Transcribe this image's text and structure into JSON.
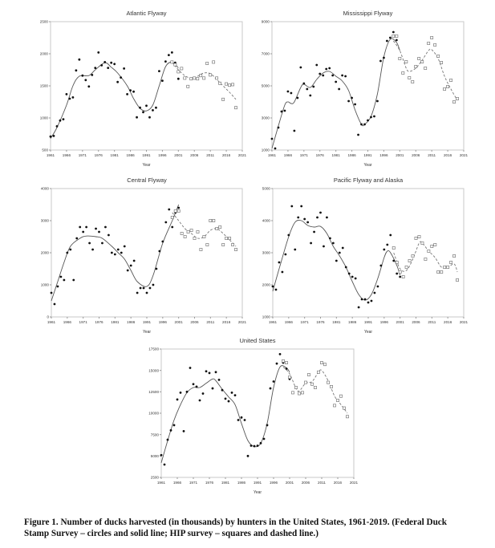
{
  "caption": "Figure 1. Number of ducks harvested (in thousands) by hunters in the United States, 1961-2019.  (Federal Duck Stamp Survey – circles and solid line; HIP survey – squares and dashed line.)",
  "chart_data": [
    {
      "type": "scatter",
      "title": "Atlantic Flyway",
      "xlabel": "Year",
      "xlim": [
        1961,
        2021
      ],
      "xticks": [
        1961,
        1966,
        1971,
        1976,
        1981,
        1986,
        1991,
        1996,
        2001,
        2006,
        2011,
        2016,
        2021
      ],
      "ylim": [
        500,
        2500
      ],
      "yticks": [
        500,
        1000,
        1500,
        2000,
        2500
      ],
      "circles": {
        "x": [
          1961,
          1962,
          1963,
          1964,
          1965,
          1966,
          1967,
          1968,
          1969,
          1970,
          1971,
          1972,
          1973,
          1974,
          1975,
          1976,
          1977,
          1978,
          1979,
          1980,
          1981,
          1982,
          1983,
          1984,
          1985,
          1986,
          1987,
          1988,
          1989,
          1990,
          1991,
          1992,
          1993,
          1994,
          1995,
          1996,
          1997,
          1998,
          1999,
          2000,
          2001
        ],
        "y": [
          710,
          720,
          870,
          960,
          980,
          1370,
          1300,
          1320,
          1740,
          1910,
          1660,
          1590,
          1490,
          1670,
          1780,
          2020,
          1820,
          1870,
          1780,
          1860,
          1840,
          1560,
          1630,
          1770,
          1370,
          1430,
          1410,
          1010,
          1160,
          1090,
          1190,
          1010,
          1120,
          1160,
          1730,
          1580,
          1880,
          1980,
          2020,
          1860,
          1610
        ]
      },
      "squares": {
        "x": [
          1999,
          2000,
          2001,
          2002,
          2003,
          2004,
          2005,
          2006,
          2007,
          2008,
          2009,
          2010,
          2011,
          2012,
          2013,
          2014,
          2015,
          2016,
          2017,
          2018,
          2019
        ],
        "y": [
          1870,
          1830,
          1720,
          1770,
          1620,
          1490,
          1610,
          1620,
          1610,
          1660,
          1620,
          1850,
          1670,
          1870,
          1620,
          1540,
          1290,
          1530,
          1510,
          1520,
          1160
        ]
      },
      "solid_line": {
        "x": [
          1961,
          1963,
          1966,
          1968,
          1970,
          1973,
          1975,
          1978,
          1980,
          1982,
          1985,
          1987,
          1989,
          1991,
          1993,
          1995,
          1997,
          1999,
          2001
        ],
        "y": [
          680,
          850,
          1200,
          1500,
          1650,
          1660,
          1750,
          1860,
          1790,
          1700,
          1500,
          1300,
          1150,
          1110,
          1200,
          1500,
          1800,
          1870,
          1780
        ]
      },
      "dashed_line": {
        "x": [
          1999,
          2001,
          2003,
          2005,
          2007,
          2009,
          2011,
          2013,
          2015,
          2017,
          2019
        ],
        "y": [
          1870,
          1750,
          1660,
          1620,
          1650,
          1700,
          1690,
          1600,
          1500,
          1400,
          1290
        ]
      }
    },
    {
      "type": "scatter",
      "title": "Mississippi Flyway",
      "xlabel": "Year",
      "xlim": [
        1961,
        2021
      ],
      "xticks": [
        1961,
        1966,
        1971,
        1976,
        1981,
        1986,
        1991,
        1996,
        2001,
        2006,
        2011,
        2016,
        2021
      ],
      "ylim": [
        1000,
        9000
      ],
      "yticks": [
        1000,
        3000,
        5000,
        7000,
        9000
      ],
      "circles": {
        "x": [
          1961,
          1962,
          1963,
          1964,
          1965,
          1966,
          1967,
          1968,
          1969,
          1970,
          1971,
          1972,
          1973,
          1974,
          1975,
          1976,
          1977,
          1978,
          1979,
          1980,
          1981,
          1982,
          1983,
          1984,
          1985,
          1986,
          1987,
          1988,
          1989,
          1990,
          1991,
          1992,
          1993,
          1994,
          1995,
          1996,
          1997,
          1998,
          1999,
          2000,
          2001
        ],
        "y": [
          1700,
          1100,
          2400,
          3400,
          3450,
          4650,
          4550,
          2200,
          4250,
          6150,
          5150,
          4800,
          4400,
          4950,
          6300,
          5750,
          5650,
          6050,
          6100,
          5650,
          5250,
          4800,
          5650,
          5600,
          4050,
          4250,
          3850,
          1950,
          2600,
          2600,
          2850,
          3050,
          3100,
          4050,
          6550,
          6750,
          7800,
          8000,
          8350,
          7850,
          6700
        ]
      },
      "squares": {
        "x": [
          1999,
          2000,
          2001,
          2002,
          2003,
          2004,
          2005,
          2006,
          2007,
          2008,
          2009,
          2010,
          2011,
          2012,
          2013,
          2014,
          2015,
          2016,
          2017,
          2018,
          2019
        ],
        "y": [
          8100,
          8100,
          6700,
          5800,
          6500,
          5500,
          5250,
          6200,
          6700,
          6500,
          6100,
          7650,
          8000,
          7550,
          6850,
          6450,
          4800,
          4950,
          5350,
          4000,
          4200
        ]
      },
      "solid_line": {
        "x": [
          1961,
          1963,
          1965,
          1966,
          1967,
          1968,
          1970,
          1971,
          1973,
          1975,
          1977,
          1979,
          1981,
          1983,
          1985,
          1987,
          1989,
          1990,
          1992,
          1994,
          1996,
          1998,
          2000,
          2001
        ],
        "y": [
          1100,
          2500,
          3800,
          4000,
          3900,
          4000,
          4900,
          5100,
          4900,
          5400,
          5800,
          5900,
          5600,
          5300,
          4700,
          3500,
          2600,
          2600,
          3100,
          4500,
          6800,
          7900,
          7700,
          7200
        ]
      },
      "dashed_line": {
        "x": [
          1999,
          2001,
          2003,
          2004,
          2006,
          2008,
          2010,
          2011,
          2013,
          2015,
          2017,
          2019
        ],
        "y": [
          7800,
          7200,
          6100,
          5900,
          6100,
          6600,
          7200,
          7250,
          6700,
          5600,
          4800,
          4100
        ]
      }
    },
    {
      "type": "scatter",
      "title": "Central Flyway",
      "xlabel": "Year",
      "xlim": [
        1961,
        2021
      ],
      "xticks": [
        1961,
        1966,
        1971,
        1976,
        1981,
        1986,
        1991,
        1996,
        2001,
        2006,
        2011,
        2016,
        2021
      ],
      "ylim": [
        0,
        4000
      ],
      "yticks": [
        0,
        1000,
        2000,
        3000,
        4000
      ],
      "circles": {
        "x": [
          1961,
          1962,
          1963,
          1964,
          1965,
          1966,
          1967,
          1968,
          1969,
          1970,
          1971,
          1972,
          1973,
          1974,
          1975,
          1976,
          1977,
          1978,
          1979,
          1980,
          1981,
          1982,
          1983,
          1984,
          1985,
          1986,
          1987,
          1988,
          1989,
          1990,
          1991,
          1992,
          1993,
          1994,
          1995,
          1996,
          1997,
          1998,
          1999,
          2000,
          2001
        ],
        "y": [
          750,
          400,
          950,
          1250,
          1150,
          2000,
          2100,
          1150,
          2450,
          2800,
          2650,
          2800,
          2300,
          2100,
          2750,
          2650,
          2300,
          2800,
          2550,
          2000,
          1950,
          2100,
          2000,
          2200,
          1450,
          1600,
          1750,
          750,
          900,
          900,
          750,
          900,
          1000,
          1500,
          2050,
          2350,
          2950,
          3350,
          2800,
          3250,
          3400
        ]
      },
      "squares": {
        "x": [
          1999,
          2000,
          2001,
          2002,
          2003,
          2004,
          2005,
          2006,
          2007,
          2008,
          2009,
          2010,
          2011,
          2012,
          2013,
          2014,
          2015,
          2016,
          2017,
          2018,
          2019
        ],
        "y": [
          3100,
          3300,
          3300,
          2600,
          2500,
          2650,
          2700,
          2450,
          2650,
          2100,
          2500,
          2250,
          3000,
          3000,
          2750,
          2800,
          2250,
          2450,
          2450,
          2250,
          2100
        ]
      },
      "solid_line": {
        "x": [
          1961,
          1963,
          1965,
          1967,
          1970,
          1972,
          1975,
          1977,
          1980,
          1982,
          1984,
          1986,
          1988,
          1991,
          1993,
          1996,
          1999,
          2001
        ],
        "y": [
          500,
          1100,
          1700,
          2200,
          2450,
          2520,
          2500,
          2450,
          2200,
          2000,
          1800,
          1450,
          1100,
          950,
          1300,
          2300,
          3000,
          3500
        ]
      },
      "dashed_line": {
        "x": [
          1999,
          2001,
          2003,
          2005,
          2007,
          2009,
          2011,
          2013,
          2015,
          2017,
          2019
        ],
        "y": [
          3250,
          3000,
          2750,
          2600,
          2450,
          2500,
          2700,
          2750,
          2600,
          2400,
          2200
        ]
      }
    },
    {
      "type": "scatter",
      "title": "Pacific Flyway and Alaska",
      "xlabel": "Year",
      "xlim": [
        1961,
        2021
      ],
      "xticks": [
        1961,
        1966,
        1971,
        1976,
        1981,
        1986,
        1991,
        1996,
        2001,
        2006,
        2011,
        2016,
        2021
      ],
      "ylim": [
        1000,
        5000
      ],
      "yticks": [
        1000,
        2000,
        3000,
        4000,
        5000
      ],
      "circles": {
        "x": [
          1961,
          1962,
          1963,
          1964,
          1965,
          1966,
          1967,
          1968,
          1969,
          1970,
          1971,
          1972,
          1973,
          1974,
          1975,
          1976,
          1977,
          1978,
          1979,
          1980,
          1981,
          1982,
          1983,
          1984,
          1985,
          1986,
          1987,
          1988,
          1989,
          1990,
          1991,
          1992,
          1993,
          1994,
          1995,
          1996,
          1997,
          1998,
          1999,
          2000,
          2001
        ],
        "y": [
          1950,
          1850,
          2700,
          2400,
          2950,
          3550,
          4450,
          3100,
          4100,
          4450,
          4050,
          3950,
          3300,
          3650,
          4100,
          4250,
          3200,
          4100,
          3450,
          3300,
          2750,
          3000,
          3150,
          2550,
          2350,
          2250,
          2200,
          1300,
          1550,
          1550,
          1450,
          1500,
          1750,
          1950,
          2600,
          3100,
          3250,
          3550,
          2750,
          2350,
          2250
        ]
      },
      "squares": {
        "x": [
          1999,
          2000,
          2001,
          2002,
          2003,
          2004,
          2005,
          2006,
          2007,
          2008,
          2009,
          2010,
          2011,
          2012,
          2013,
          2014,
          2015,
          2016,
          2017,
          2018,
          2019
        ],
        "y": [
          3150,
          2700,
          2400,
          2250,
          2550,
          2750,
          2900,
          3450,
          3500,
          3300,
          2800,
          3050,
          3200,
          3250,
          2400,
          2400,
          2550,
          2550,
          2700,
          2900,
          2150
        ]
      },
      "solid_line": {
        "x": [
          1961,
          1963,
          1966,
          1968,
          1970,
          1972,
          1974,
          1976,
          1978,
          1980,
          1982,
          1984,
          1986,
          1988,
          1990,
          1992,
          1994,
          1996,
          1997,
          1998,
          2000,
          2001
        ],
        "y": [
          1800,
          2500,
          3500,
          3950,
          4000,
          3850,
          3800,
          3820,
          3600,
          3200,
          2900,
          2550,
          2100,
          1700,
          1520,
          1700,
          2200,
          2850,
          3050,
          3000,
          2600,
          2300
        ]
      },
      "dashed_line": {
        "x": [
          1999,
          2001,
          2003,
          2005,
          2007,
          2008,
          2010,
          2012,
          2014,
          2016,
          2018,
          2019
        ],
        "y": [
          3000,
          2500,
          2450,
          2800,
          3300,
          3300,
          3050,
          2850,
          2550,
          2550,
          2650,
          2400
        ]
      }
    },
    {
      "type": "scatter",
      "title": "United States",
      "xlabel": "Year",
      "xlim": [
        1961,
        2021
      ],
      "xticks": [
        1961,
        1966,
        1971,
        1976,
        1981,
        1986,
        1991,
        1996,
        2001,
        2006,
        2011,
        2016,
        2021
      ],
      "ylim": [
        2500,
        17500
      ],
      "yticks": [
        2500,
        5000,
        7500,
        10000,
        12500,
        15000,
        17500
      ],
      "circles": {
        "x": [
          1961,
          1962,
          1963,
          1964,
          1965,
          1966,
          1967,
          1968,
          1969,
          1970,
          1971,
          1972,
          1973,
          1974,
          1975,
          1976,
          1977,
          1978,
          1979,
          1980,
          1981,
          1982,
          1983,
          1984,
          1985,
          1986,
          1987,
          1988,
          1989,
          1990,
          1991,
          1992,
          1993,
          1994,
          1995,
          1996,
          1997,
          1998,
          1999,
          2000,
          2001
        ],
        "y": [
          5100,
          4000,
          6900,
          8000,
          8600,
          11600,
          12400,
          7900,
          12500,
          15300,
          13400,
          13100,
          11500,
          12300,
          14900,
          14700,
          12900,
          14800,
          13900,
          12700,
          11700,
          11400,
          12400,
          12100,
          9200,
          9500,
          9200,
          5000,
          6200,
          6150,
          6200,
          6500,
          7000,
          8600,
          12900,
          13700,
          15800,
          16900,
          15900,
          15200,
          14000
        ]
      },
      "squares": {
        "x": [
          1999,
          2000,
          2001,
          2002,
          2003,
          2004,
          2005,
          2006,
          2007,
          2008,
          2009,
          2010,
          2011,
          2012,
          2013,
          2014,
          2015,
          2016,
          2017,
          2018,
          2019
        ],
        "y": [
          16100,
          15900,
          14200,
          12400,
          13000,
          12300,
          12400,
          13600,
          14500,
          13400,
          13000,
          14800,
          15900,
          15700,
          13600,
          13100,
          10900,
          11500,
          12000,
          10600,
          9600
        ]
      },
      "solid_line": {
        "x": [
          1961,
          1963,
          1965,
          1967,
          1969,
          1971,
          1973,
          1975,
          1977,
          1978,
          1980,
          1982,
          1984,
          1986,
          1988,
          1990,
          1992,
          1994,
          1996,
          1998,
          2000,
          2001
        ],
        "y": [
          4200,
          6800,
          9200,
          11000,
          12400,
          13000,
          13000,
          13500,
          14000,
          13800,
          12800,
          11900,
          11000,
          8800,
          6800,
          6100,
          6500,
          8800,
          13000,
          15400,
          15300,
          14800
        ]
      },
      "dashed_line": {
        "x": [
          1999,
          2001,
          2003,
          2004,
          2006,
          2008,
          2010,
          2011,
          2013,
          2015,
          2017,
          2019
        ],
        "y": [
          15400,
          14600,
          12900,
          12600,
          13500,
          13700,
          14800,
          15000,
          13800,
          12000,
          11000,
          10000
        ]
      }
    }
  ]
}
